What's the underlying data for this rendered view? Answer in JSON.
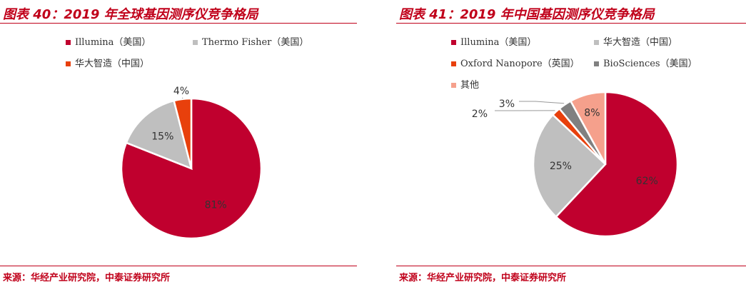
{
  "charts": [
    {
      "title": "图表 40：2019 年全球基因测序仪竞争格局",
      "source": "来源：华经产业研究院，中泰证券研究所"
    },
    {
      "title": "图表 41：2019 年中国基因测序仪竞争格局",
      "source": "来源：华经产业研究院，中泰证券研究所"
    }
  ],
  "chart_data": [
    {
      "type": "pie",
      "title": "图表 40：2019 年全球基因测序仪竞争格局",
      "legend": [
        "Illumina（美国）",
        "Thermo Fisher（美国）",
        "华大智造（中国）"
      ],
      "legend_position": "top",
      "slices": [
        {
          "label": "Illumina（美国）",
          "value": 81,
          "value_label": "81%",
          "color": "#c0002e"
        },
        {
          "label": "Thermo Fisher（美国）",
          "value": 15,
          "value_label": "15%",
          "color": "#bfbfbf"
        },
        {
          "label": "华大智造（中国）",
          "value": 4,
          "value_label": "4%",
          "color": "#e8400c"
        }
      ]
    },
    {
      "type": "pie",
      "title": "图表 41：2019 年中国基因测序仪竞争格局",
      "legend": [
        "Illumina（美国）",
        "华大智造（中国）",
        "Oxford Nanopore（英国）",
        "BioSciences（美国）",
        "其他"
      ],
      "legend_position": "top",
      "slices": [
        {
          "label": "Illumina（美国）",
          "value": 62,
          "value_label": "62%",
          "color": "#c0002e"
        },
        {
          "label": "华大智造（中国）",
          "value": 25,
          "value_label": "25%",
          "color": "#bfbfbf"
        },
        {
          "label": "Oxford Nanopore（英国）",
          "value": 2,
          "value_label": "2%",
          "color": "#e8400c"
        },
        {
          "label": "BioSciences（美国）",
          "value": 3,
          "value_label": "3%",
          "color": "#808080"
        },
        {
          "label": "其他",
          "value": 8,
          "value_label": "8%",
          "color": "#f5a08c"
        }
      ]
    }
  ]
}
